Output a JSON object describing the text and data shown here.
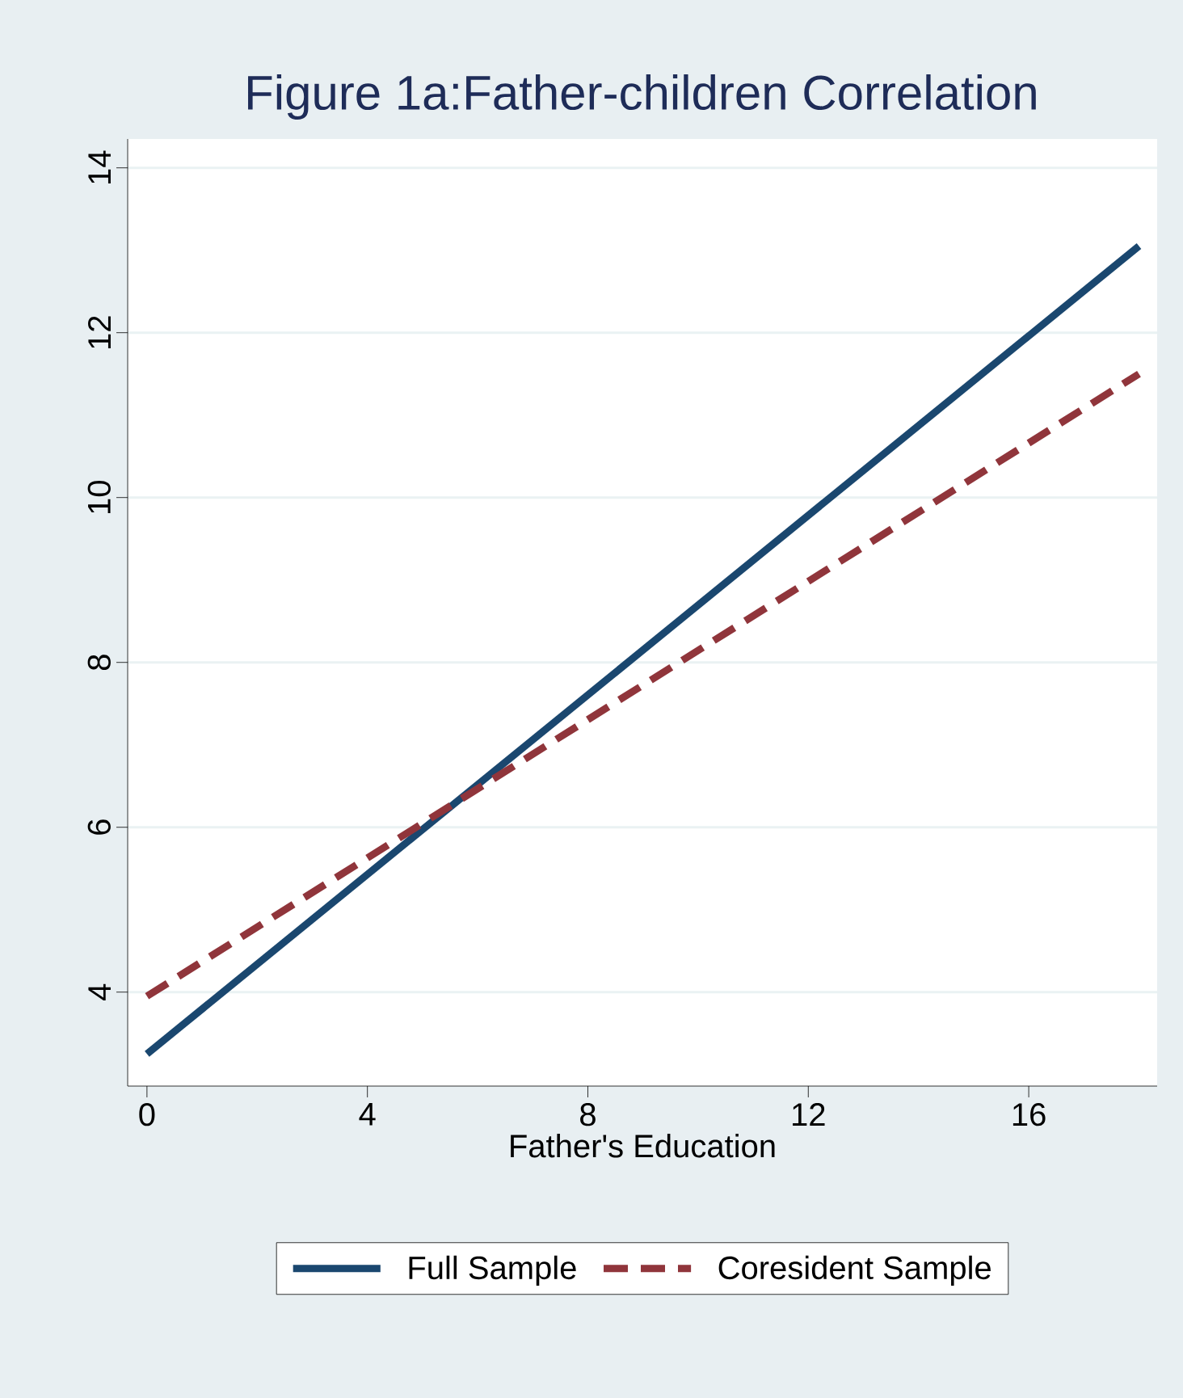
{
  "chart_data": {
    "type": "line",
    "title": "Figure 1a:Father-children Correlation",
    "xlabel": "Father's Education",
    "x": [
      0,
      18
    ],
    "series": [
      {
        "name": "Full Sample",
        "color": "#1a476f",
        "values": [
          3.25,
          13.05
        ],
        "line_style": "solid"
      },
      {
        "name": "Coresident Sample",
        "color": "#90353b",
        "values": [
          3.95,
          11.5
        ],
        "line_style": "dashed"
      }
    ],
    "xlim": [
      -0.35,
      18.33
    ],
    "ylim": [
      2.86,
      14.35
    ],
    "xticks": [
      0,
      4,
      8,
      12,
      16
    ],
    "yticks": [
      4,
      6,
      8,
      10,
      12,
      14
    ],
    "grid": "y",
    "legend": "bottom"
  }
}
